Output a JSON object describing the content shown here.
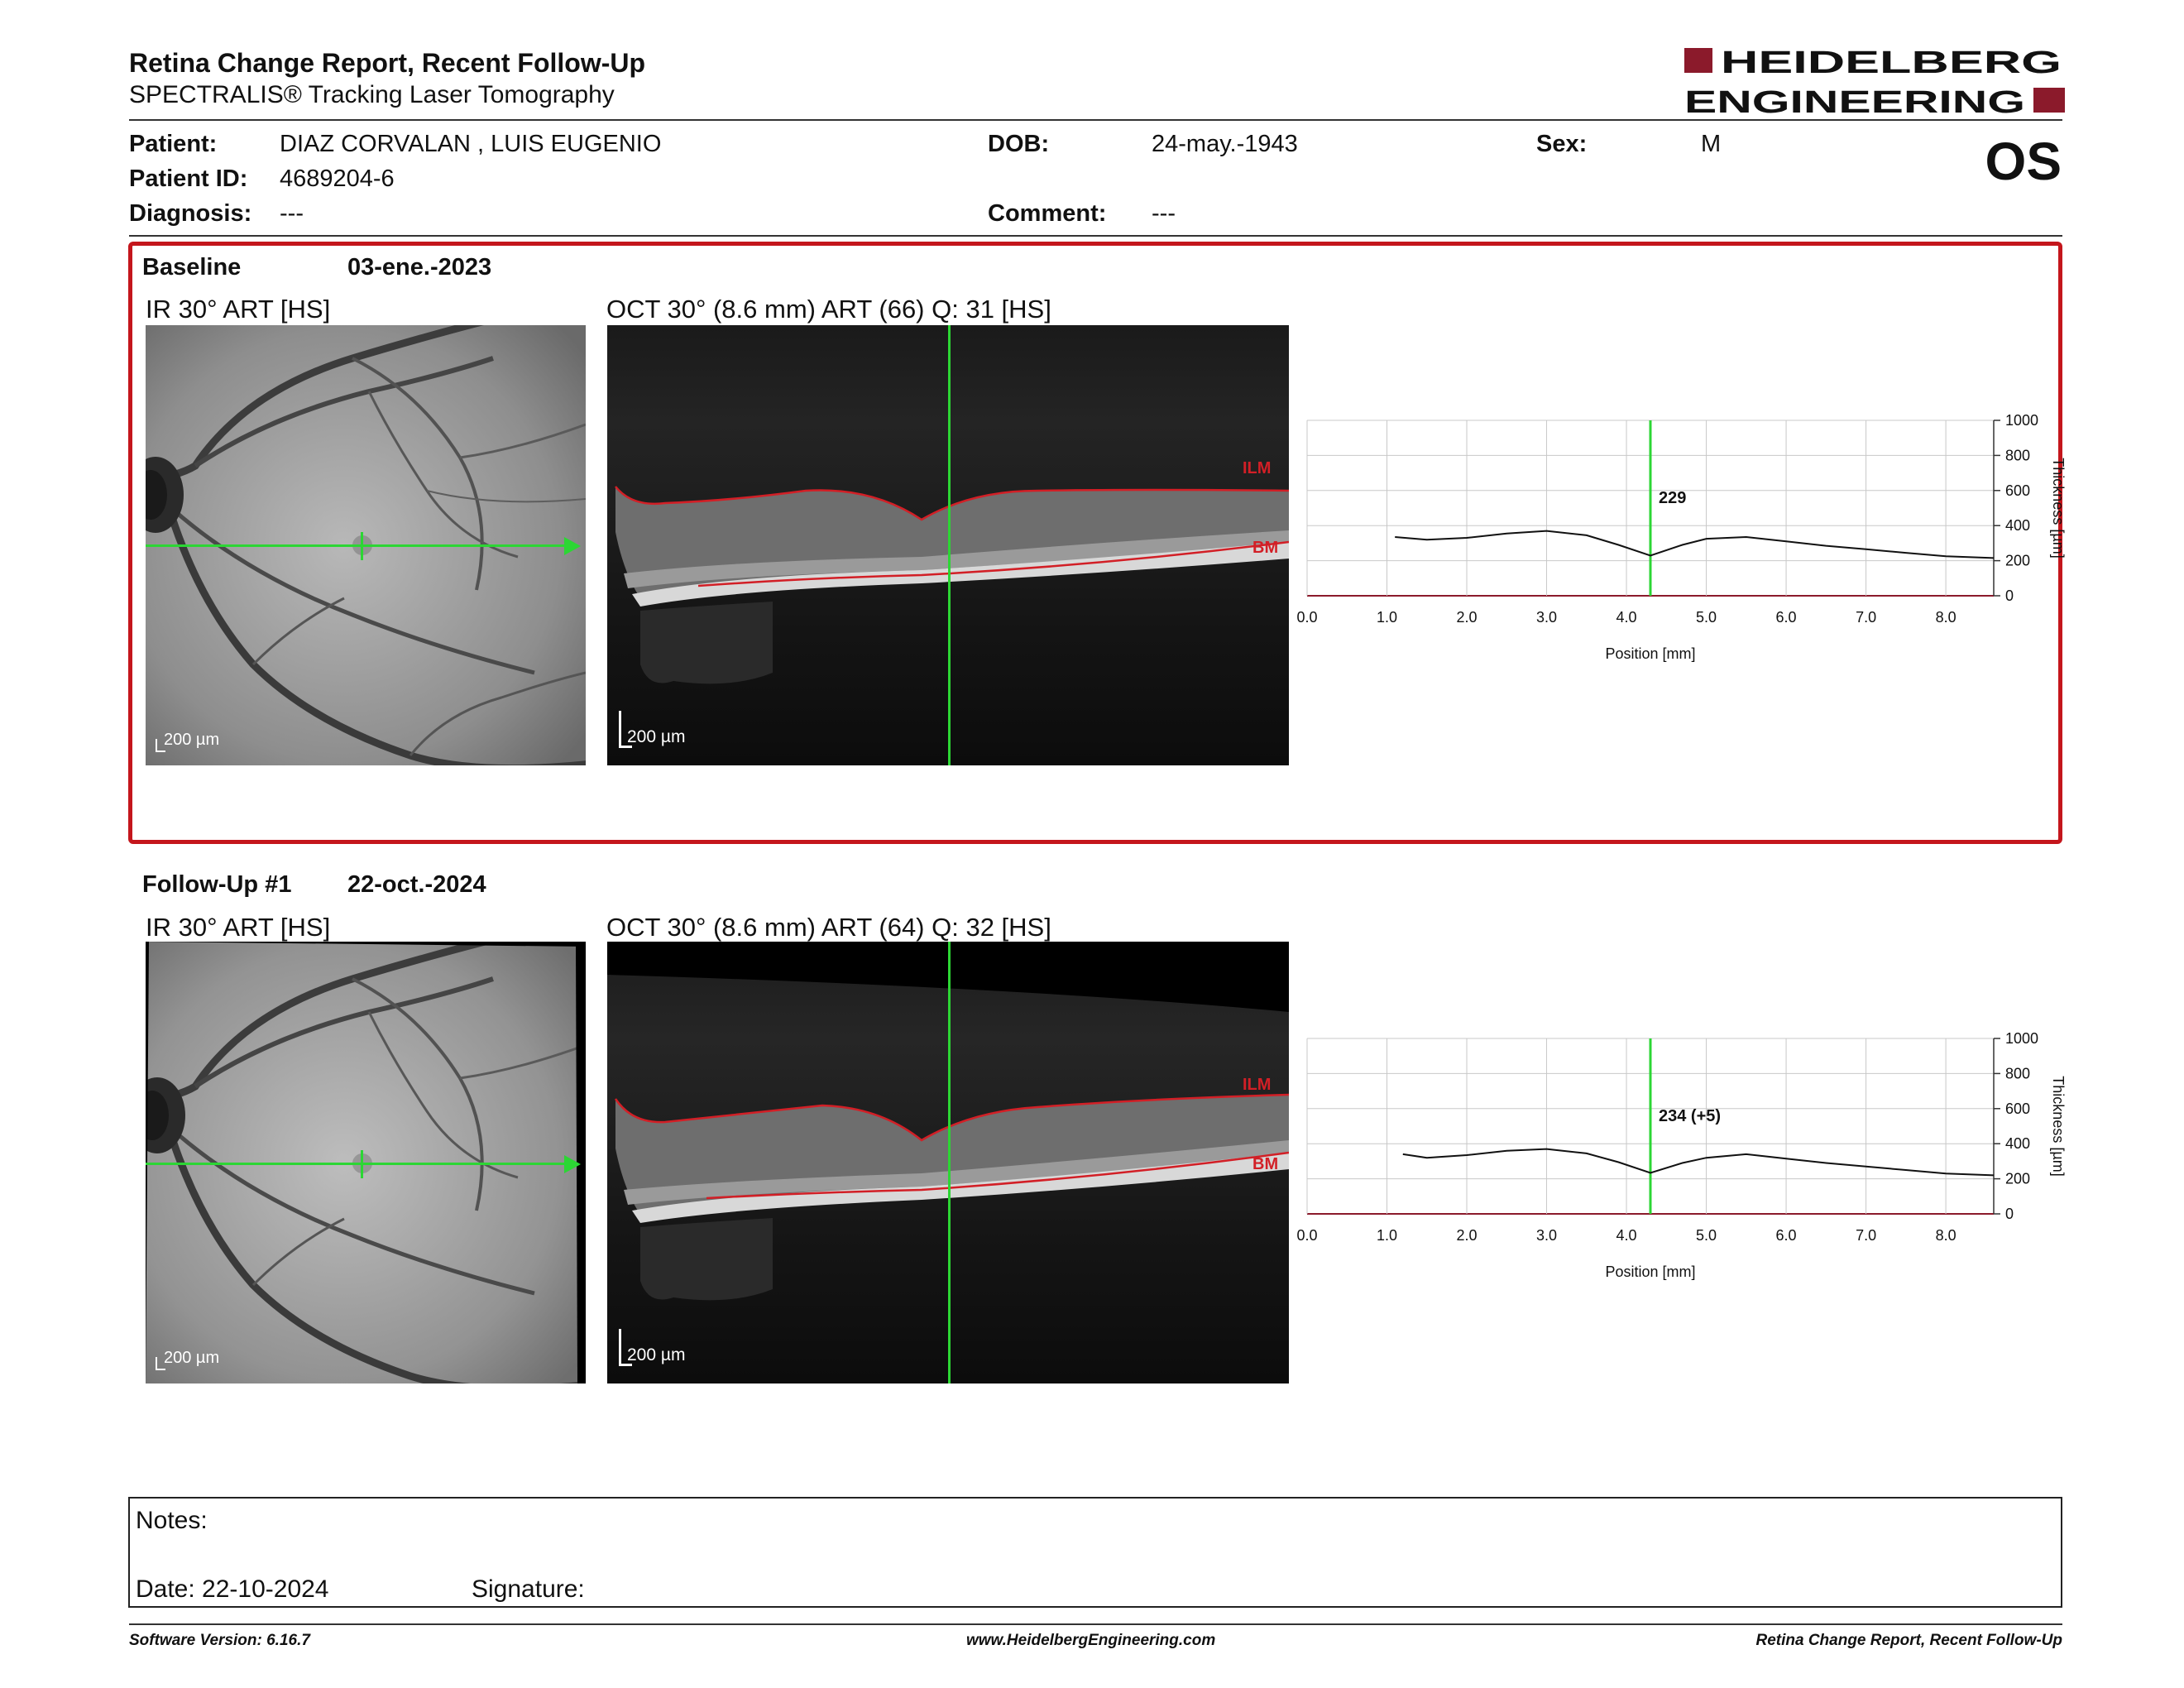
{
  "header": {
    "title": "Retina Change Report, Recent Follow-Up",
    "subtitle": "SPECTRALIS® Tracking Laser Tomography",
    "logo_line1": "HEIDELBERG",
    "logo_line2": "ENGINEERING",
    "brand_color": "#8b1a2b"
  },
  "patient": {
    "name_label": "Patient:",
    "name": "DIAZ CORVALAN , LUIS EUGENIO",
    "id_label": "Patient ID:",
    "id": "4689204-6",
    "diagnosis_label": "Diagnosis:",
    "diagnosis": "---",
    "dob_label": "DOB:",
    "dob": "24-may.-1943",
    "comment_label": "Comment:",
    "comment": "---",
    "sex_label": "Sex:",
    "sex": "M",
    "eye": "OS"
  },
  "baseline": {
    "label": "Baseline",
    "date": "03-ene.-2023",
    "ir_caption": "IR 30° ART [HS]",
    "oct_caption": "OCT 30° (8.6 mm) ART (66) Q: 31 [HS]",
    "ir_scale": "200 µm",
    "oct_scale": "200 µm",
    "ilm_label": "ILM",
    "bm_label": "BM",
    "thickness_value": "229",
    "highlight_color": "#c4161c"
  },
  "followup": {
    "label": "Follow-Up #1",
    "date": "22-oct.-2024",
    "ir_caption": "IR 30° ART [HS]",
    "oct_caption": "OCT 30° (8.6 mm) ART (64) Q: 32 [HS]",
    "ir_scale": "200 µm",
    "oct_scale": "200 µm",
    "ilm_label": "ILM",
    "bm_label": "BM",
    "thickness_value": "234 (+5)"
  },
  "chart_data": [
    {
      "type": "line",
      "xlabel": "Position [mm]",
      "ylabel": "Thickness [µm]",
      "xlim": [
        0,
        8.6
      ],
      "ylim": [
        0,
        1000
      ],
      "x_ticks": [
        "0.0",
        "1.0",
        "2.0",
        "3.0",
        "4.0",
        "5.0",
        "6.0",
        "7.0",
        "8.0"
      ],
      "y_ticks": [
        "0",
        "200",
        "400",
        "600",
        "800",
        "1000"
      ],
      "cursor_x": 4.3,
      "cursor_label": "229",
      "grid": true,
      "series": [
        {
          "x": [
            1.1,
            1.5,
            2.0,
            2.5,
            3.0,
            3.5,
            3.9,
            4.3,
            4.7,
            5.0,
            5.5,
            6.0,
            6.5,
            7.0,
            7.5,
            8.0,
            8.6
          ],
          "y": [
            335,
            320,
            330,
            355,
            370,
            345,
            290,
            229,
            290,
            325,
            335,
            310,
            285,
            265,
            245,
            225,
            215
          ]
        }
      ]
    },
    {
      "type": "line",
      "xlabel": "Position [mm]",
      "ylabel": "Thickness [µm]",
      "xlim": [
        0,
        8.6
      ],
      "ylim": [
        0,
        1000
      ],
      "x_ticks": [
        "0.0",
        "1.0",
        "2.0",
        "3.0",
        "4.0",
        "5.0",
        "6.0",
        "7.0",
        "8.0"
      ],
      "y_ticks": [
        "0",
        "200",
        "400",
        "600",
        "800",
        "1000"
      ],
      "cursor_x": 4.3,
      "cursor_label": "234 (+5)",
      "grid": true,
      "series": [
        {
          "x": [
            1.2,
            1.5,
            2.0,
            2.5,
            3.0,
            3.5,
            3.9,
            4.3,
            4.7,
            5.0,
            5.5,
            6.0,
            6.5,
            7.0,
            7.5,
            8.0,
            8.6
          ],
          "y": [
            340,
            320,
            335,
            360,
            370,
            345,
            295,
            234,
            290,
            320,
            340,
            315,
            290,
            270,
            250,
            230,
            220
          ]
        }
      ]
    }
  ],
  "notes": {
    "notes_label": "Notes:",
    "date_label": "Date: 22-10-2024",
    "signature_label": "Signature:"
  },
  "footer": {
    "software": "Software Version: 6.16.7",
    "website": "www.HeidelbergEngineering.com",
    "report_name": "Retina Change Report, Recent Follow-Up"
  }
}
